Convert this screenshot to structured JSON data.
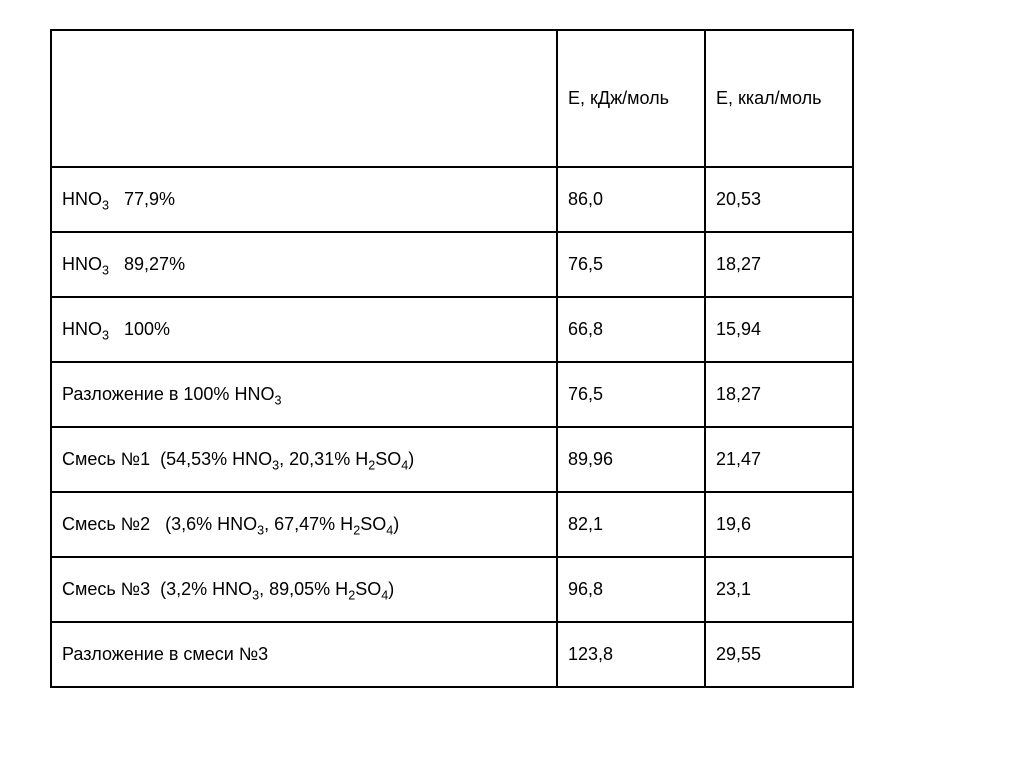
{
  "page": {
    "background_color": "#ffffff",
    "text_color": "#000000",
    "border_color": "#000000"
  },
  "table": {
    "columns": [
      "",
      "Е, кДж/моль",
      "Е, ккал/моль"
    ],
    "rows": [
      {
        "label": [
          {
            "t": "HNO"
          },
          {
            "t": "3",
            "sub": true
          },
          {
            "t": "   77,9%"
          }
        ],
        "kj": "86,0",
        "kcal": "20,53"
      },
      {
        "label": [
          {
            "t": "HNO"
          },
          {
            "t": "3",
            "sub": true
          },
          {
            "t": "   89,27%"
          }
        ],
        "kj": "76,5",
        "kcal": "18,27"
      },
      {
        "label": [
          {
            "t": "HNO"
          },
          {
            "t": "3",
            "sub": true
          },
          {
            "t": "   100%"
          }
        ],
        "kj": "66,8",
        "kcal": "15,94"
      },
      {
        "label": [
          {
            "t": "Разложение в 100% HNO"
          },
          {
            "t": "3",
            "sub": true
          }
        ],
        "kj": "76,5",
        "kcal": "18,27"
      },
      {
        "label": [
          {
            "t": "Смесь №1  (54,53% HNO"
          },
          {
            "t": "3",
            "sub": true
          },
          {
            "t": ", 20,31% H"
          },
          {
            "t": "2",
            "sub": true
          },
          {
            "t": "SO"
          },
          {
            "t": "4",
            "sub": true
          },
          {
            "t": ")"
          }
        ],
        "kj": "89,96",
        "kcal": "21,47"
      },
      {
        "label": [
          {
            "t": "Смесь №2   (3,6% HNO"
          },
          {
            "t": "3",
            "sub": true
          },
          {
            "t": ", 67,47% H"
          },
          {
            "t": "2",
            "sub": true
          },
          {
            "t": "SO"
          },
          {
            "t": "4",
            "sub": true
          },
          {
            "t": ")"
          }
        ],
        "kj": "82,1",
        "kcal": "19,6"
      },
      {
        "label": [
          {
            "t": "Смесь №3  (3,2% HNO"
          },
          {
            "t": "3",
            "sub": true
          },
          {
            "t": ", 89,05% H"
          },
          {
            "t": "2",
            "sub": true
          },
          {
            "t": "SO"
          },
          {
            "t": "4",
            "sub": true
          },
          {
            "t": ")"
          }
        ],
        "kj": "96,8",
        "kcal": "23,1"
      },
      {
        "label": [
          {
            "t": "Разложение в смеси №3"
          }
        ],
        "kj": "123,8",
        "kcal": "29,55"
      }
    ]
  },
  "chart_data": {
    "type": "table",
    "columns": [
      "",
      "Е, кДж/моль",
      "Е, ккал/моль"
    ],
    "rows": [
      [
        "HNO₃   77,9%",
        "86,0",
        "20,53"
      ],
      [
        "HNO₃   89,27%",
        "76,5",
        "18,27"
      ],
      [
        "HNO₃   100%",
        "66,8",
        "15,94"
      ],
      [
        "Разложение в 100% HNO₃",
        "76,5",
        "18,27"
      ],
      [
        "Смесь №1  (54,53% HNO₃, 20,31% H₂SO₄)",
        "89,96",
        "21,47"
      ],
      [
        "Смесь №2   (3,6% HNO₃, 67,47% H₂SO₄)",
        "82,1",
        "19,6"
      ],
      [
        "Смесь №3  (3,2% HNO₃, 89,05% H₂SO₄)",
        "96,8",
        "23,1"
      ],
      [
        "Разложение в смеси №3",
        "123,8",
        "29,55"
      ]
    ]
  }
}
